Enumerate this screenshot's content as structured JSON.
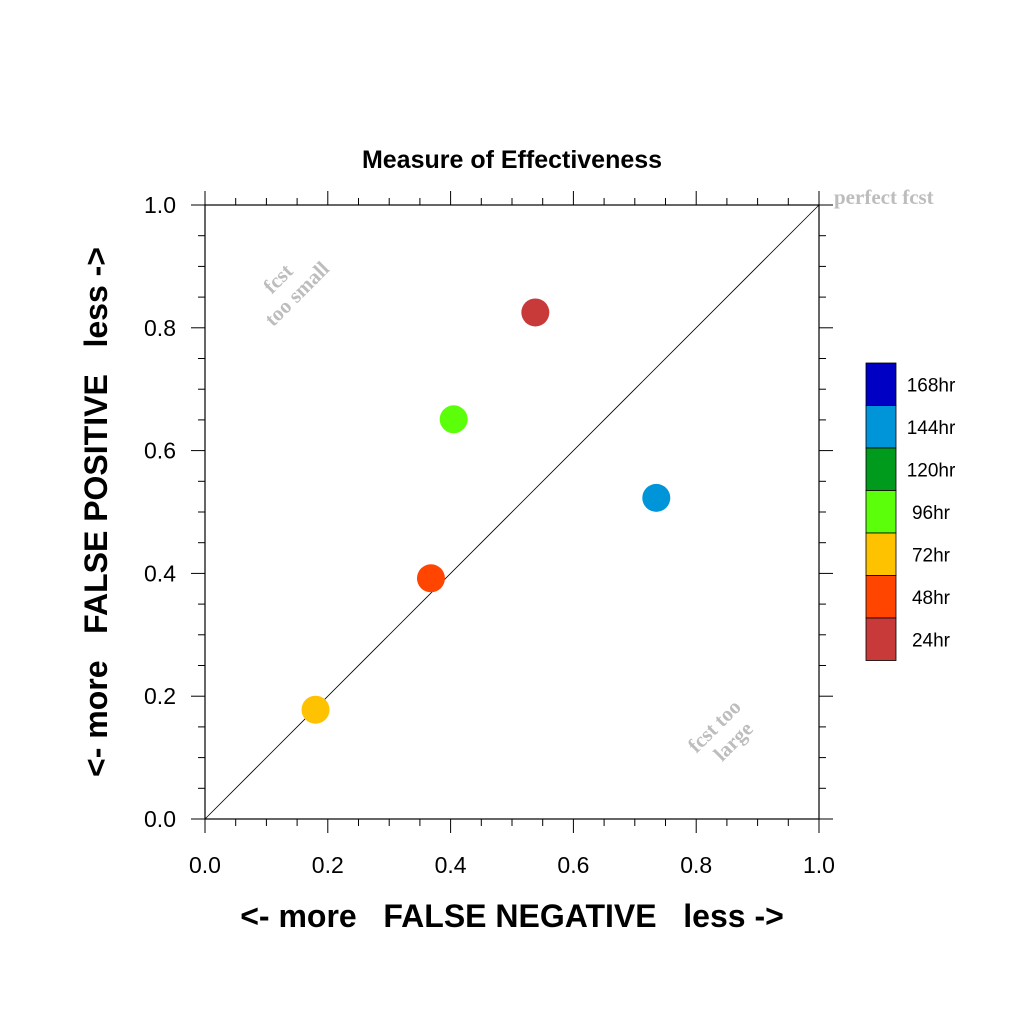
{
  "chart_data": {
    "type": "scatter",
    "title": "Measure of Effectiveness",
    "xlabel": "<- more   FALSE NEGATIVE   less ->",
    "ylabel": "<- more   FALSE POSITIVE   less ->",
    "xlim": [
      0.0,
      1.0
    ],
    "ylim": [
      0.0,
      1.0
    ],
    "x_ticks": [
      "0.0",
      "0.2",
      "0.4",
      "0.6",
      "0.8",
      "1.0"
    ],
    "y_ticks": [
      "0.0",
      "0.2",
      "0.4",
      "0.6",
      "0.8",
      "1.0"
    ],
    "grid": false,
    "reference_line": {
      "from": [
        0.0,
        0.0
      ],
      "to": [
        1.0,
        1.0
      ],
      "label": "perfect fcst"
    },
    "annotations": [
      {
        "id": "fcst-too-small",
        "lines": [
          "fcst",
          "too small"
        ]
      },
      {
        "id": "fcst-too-large",
        "lines": [
          "fcst too",
          "large"
        ]
      }
    ],
    "points": [
      {
        "label": "24hr",
        "x": 0.538,
        "y": 0.825,
        "color": "#c83a3a"
      },
      {
        "label": "48hr",
        "x": 0.368,
        "y": 0.392,
        "color": "#ff4500"
      },
      {
        "label": "72hr",
        "x": 0.18,
        "y": 0.178,
        "color": "#ffc200"
      },
      {
        "label": "96hr",
        "x": 0.405,
        "y": 0.651,
        "color": "#5cff0a"
      },
      {
        "label": "144hr",
        "x": 0.735,
        "y": 0.523,
        "color": "#0094d8"
      }
    ],
    "legend": {
      "position": "right",
      "entries": [
        {
          "label": "168hr",
          "color": "#0000c4"
        },
        {
          "label": "144hr",
          "color": "#0094d8"
        },
        {
          "label": "120hr",
          "color": "#009a1c"
        },
        {
          "label": "96hr",
          "color": "#5cff0a"
        },
        {
          "label": "72hr",
          "color": "#ffc200"
        },
        {
          "label": "48hr",
          "color": "#ff4500"
        },
        {
          "label": "24hr",
          "color": "#c83a3a"
        }
      ]
    }
  }
}
